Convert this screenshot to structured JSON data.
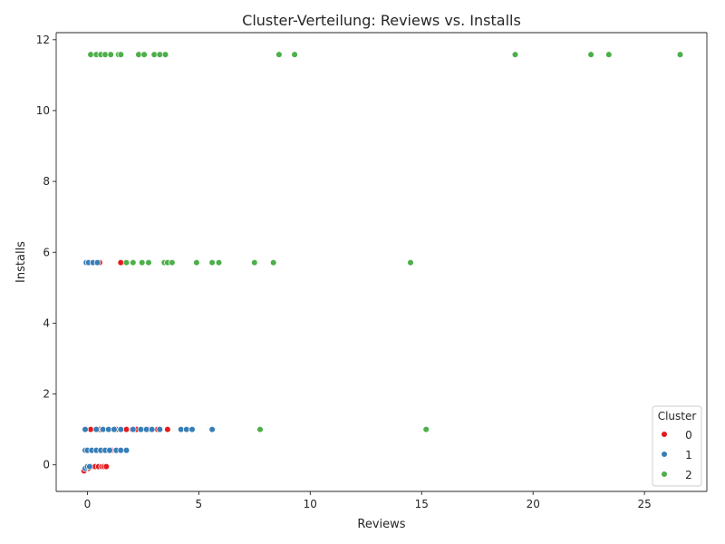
{
  "chart_data": {
    "type": "scatter",
    "title": "Cluster-Verteilung: Reviews vs. Installs",
    "xlabel": "Reviews",
    "ylabel": "Installs",
    "xlim": [
      -1.4,
      27.8
    ],
    "ylim": [
      -0.75,
      12.2
    ],
    "xticks": [
      0,
      5,
      10,
      15,
      20,
      25
    ],
    "yticks": [
      0,
      2,
      4,
      6,
      8,
      10,
      12
    ],
    "grid": false,
    "legend": {
      "title": "Cluster",
      "placement": "lower-right"
    },
    "series": [
      {
        "name": "0",
        "color": "#e41a1c",
        "points": [
          [
            -0.15,
            -0.17
          ],
          [
            0.05,
            -0.1
          ],
          [
            0.2,
            -0.05
          ],
          [
            0.35,
            -0.05
          ],
          [
            0.5,
            -0.05
          ],
          [
            0.65,
            -0.05
          ],
          [
            0.75,
            -0.05
          ],
          [
            0.85,
            -0.05
          ],
          [
            0.1,
            0.41
          ],
          [
            0.25,
            0.41
          ],
          [
            0.4,
            0.41
          ],
          [
            0.55,
            0.41
          ],
          [
            0.7,
            0.41
          ],
          [
            0.9,
            0.41
          ],
          [
            1.1,
            0.41
          ],
          [
            1.25,
            0.41
          ],
          [
            0.15,
            1.0
          ],
          [
            0.55,
            1.0
          ],
          [
            0.9,
            1.0
          ],
          [
            1.3,
            1.0
          ],
          [
            1.75,
            1.0
          ],
          [
            2.0,
            1.0
          ],
          [
            2.2,
            1.0
          ],
          [
            2.45,
            1.0
          ],
          [
            2.75,
            1.0
          ],
          [
            3.15,
            1.0
          ],
          [
            3.6,
            1.0
          ],
          [
            0.55,
            5.71
          ],
          [
            1.5,
            5.71
          ]
        ]
      },
      {
        "name": "1",
        "color": "#377eb8",
        "points": [
          [
            -0.1,
            -0.1
          ],
          [
            0.0,
            -0.05
          ],
          [
            0.1,
            -0.05
          ],
          [
            -0.1,
            0.41
          ],
          [
            0.0,
            0.41
          ],
          [
            0.2,
            0.41
          ],
          [
            0.4,
            0.41
          ],
          [
            0.6,
            0.41
          ],
          [
            0.8,
            0.41
          ],
          [
            1.0,
            0.41
          ],
          [
            1.3,
            0.41
          ],
          [
            1.5,
            0.41
          ],
          [
            1.75,
            0.41
          ],
          [
            -0.1,
            1.0
          ],
          [
            0.4,
            1.0
          ],
          [
            0.7,
            1.0
          ],
          [
            0.95,
            1.0
          ],
          [
            1.2,
            1.0
          ],
          [
            1.5,
            1.0
          ],
          [
            2.05,
            1.0
          ],
          [
            2.4,
            1.0
          ],
          [
            2.65,
            1.0
          ],
          [
            2.9,
            1.0
          ],
          [
            3.25,
            1.0
          ],
          [
            4.2,
            1.0
          ],
          [
            4.45,
            1.0
          ],
          [
            4.7,
            1.0
          ],
          [
            5.6,
            1.0
          ],
          [
            -0.05,
            5.71
          ],
          [
            0.05,
            5.71
          ],
          [
            0.25,
            5.71
          ],
          [
            0.45,
            5.71
          ]
        ]
      },
      {
        "name": "2",
        "color": "#4daf4a",
        "points": [
          [
            7.75,
            1.0
          ],
          [
            15.2,
            1.0
          ],
          [
            1.75,
            5.71
          ],
          [
            2.05,
            5.71
          ],
          [
            2.45,
            5.71
          ],
          [
            2.75,
            5.71
          ],
          [
            3.45,
            5.71
          ],
          [
            3.6,
            5.71
          ],
          [
            3.8,
            5.71
          ],
          [
            4.9,
            5.71
          ],
          [
            5.6,
            5.71
          ],
          [
            5.9,
            5.71
          ],
          [
            7.5,
            5.71
          ],
          [
            8.35,
            5.71
          ],
          [
            14.5,
            5.71
          ],
          [
            0.15,
            11.58
          ],
          [
            0.4,
            11.58
          ],
          [
            0.6,
            11.58
          ],
          [
            0.8,
            11.58
          ],
          [
            1.05,
            11.58
          ],
          [
            1.4,
            11.58
          ],
          [
            1.5,
            11.58
          ],
          [
            2.3,
            11.58
          ],
          [
            2.55,
            11.58
          ],
          [
            3.0,
            11.58
          ],
          [
            3.25,
            11.58
          ],
          [
            3.5,
            11.58
          ],
          [
            8.6,
            11.58
          ],
          [
            9.3,
            11.58
          ],
          [
            19.2,
            11.58
          ],
          [
            22.6,
            11.58
          ],
          [
            23.4,
            11.58
          ],
          [
            26.6,
            11.58
          ]
        ]
      }
    ]
  }
}
